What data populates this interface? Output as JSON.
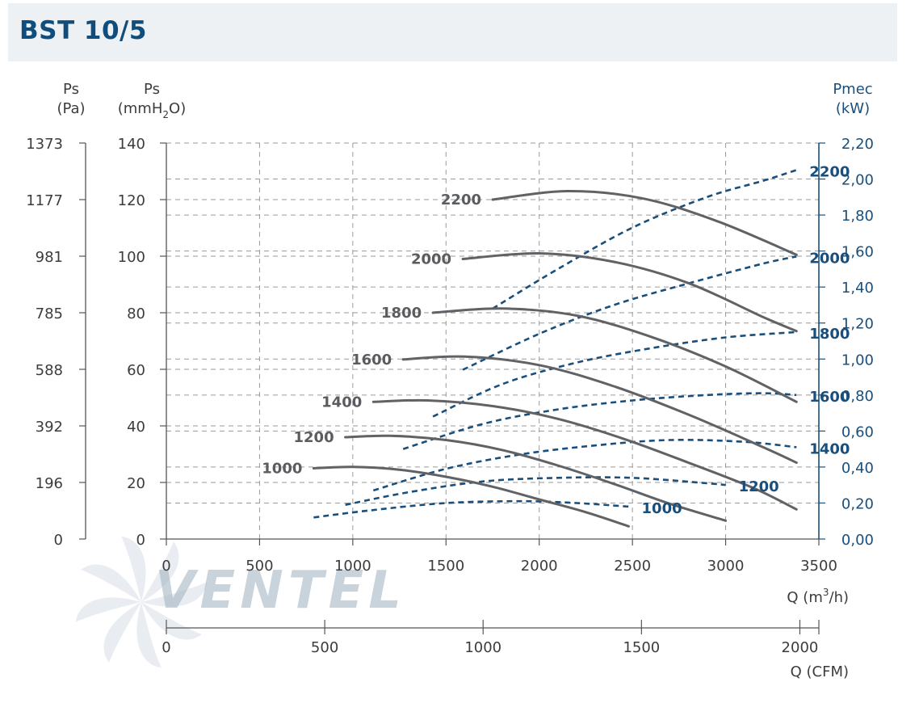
{
  "title": "BST 10/5",
  "watermark": "VENTEL",
  "colors": {
    "ps_curve": "#606266",
    "pmec_curve": "#1a4f7c",
    "title": "#0f4d7c",
    "grid": "#9a9a9a"
  },
  "chart_data": {
    "type": "line",
    "axes": {
      "left_pa": {
        "label": "Ps",
        "unit": "(Pa)",
        "ticks": [
          "1373",
          "1177",
          "981",
          "785",
          "588",
          "392",
          "196",
          "0"
        ]
      },
      "left_mmh2o": {
        "label": "Ps",
        "unit_prefix": "(mmH",
        "unit_sub": "2",
        "unit_suffix": "O)",
        "ticks": [
          "140",
          "120",
          "100",
          "80",
          "60",
          "40",
          "20",
          "0"
        ],
        "ylim": [
          0,
          140
        ]
      },
      "right_kw": {
        "label": "Pmec",
        "unit": "(kW)",
        "ticks": [
          "2,20",
          "2,00",
          "1,80",
          "1,60",
          "1,40",
          "1,20",
          "1,00",
          "0,80",
          "0,60",
          "0,40",
          "0,20",
          "0,00"
        ],
        "ylim": [
          0,
          2.2
        ]
      },
      "x_m3h": {
        "label_prefix": "Q (m",
        "label_sup": "3",
        "label_suffix": "/h)",
        "ticks": [
          "0",
          "500",
          "1000",
          "1500",
          "2000",
          "2500",
          "3000",
          "3500"
        ],
        "xlim": [
          0,
          3500
        ]
      },
      "x_cfm": {
        "label": "Q (CFM)",
        "ticks": [
          "0",
          "500",
          "1000",
          "1500",
          "2000"
        ],
        "xlim": [
          0,
          2060
        ]
      }
    },
    "grid": true,
    "ps_series": [
      {
        "name": "1000",
        "x": [
          790,
          1000,
          1250,
          1500,
          1750,
          2000,
          2250,
          2480
        ],
        "y": [
          25,
          25.5,
          24.5,
          22,
          18.5,
          14,
          9.5,
          4.5
        ]
      },
      {
        "name": "1200",
        "x": [
          960,
          1200,
          1500,
          1800,
          2100,
          2400,
          2700,
          3000
        ],
        "y": [
          36,
          36.5,
          35,
          31.5,
          26,
          19.5,
          12.5,
          6.5
        ]
      },
      {
        "name": "1400",
        "x": [
          1110,
          1400,
          1750,
          2100,
          2450,
          2800,
          3150,
          3380
        ],
        "y": [
          48.5,
          49,
          47,
          42.5,
          35.5,
          27,
          18,
          10.5
        ]
      },
      {
        "name": "1600",
        "x": [
          1270,
          1600,
          2000,
          2400,
          2800,
          3200,
          3380
        ],
        "y": [
          63.5,
          64.5,
          61.5,
          54,
          44,
          32.5,
          27
        ]
      },
      {
        "name": "1800",
        "x": [
          1430,
          1800,
          2200,
          2600,
          3000,
          3380
        ],
        "y": [
          80,
          81.5,
          79,
          71.5,
          61,
          48.5
        ]
      },
      {
        "name": "2000",
        "x": [
          1590,
          2000,
          2400,
          2800,
          3200,
          3380
        ],
        "y": [
          99,
          101,
          98,
          90.5,
          78.5,
          73.5
        ]
      },
      {
        "name": "2200",
        "x": [
          1750,
          2150,
          2550,
          2950,
          3380
        ],
        "y": [
          120,
          123,
          120.5,
          112.5,
          100.5
        ]
      }
    ],
    "pmec_series": [
      {
        "name": "1000",
        "x": [
          790,
          1100,
          1500,
          1900,
          2200,
          2480
        ],
        "y": [
          0.12,
          0.16,
          0.2,
          0.21,
          0.2,
          0.18
        ]
      },
      {
        "name": "1200",
        "x": [
          960,
          1300,
          1700,
          2100,
          2500,
          2900,
          3000
        ],
        "y": [
          0.19,
          0.26,
          0.32,
          0.34,
          0.34,
          0.31,
          0.3
        ]
      },
      {
        "name": "1400",
        "x": [
          1110,
          1500,
          1900,
          2300,
          2700,
          3100,
          3380
        ],
        "y": [
          0.27,
          0.39,
          0.47,
          0.52,
          0.55,
          0.54,
          0.51
        ]
      },
      {
        "name": "1600",
        "x": [
          1270,
          1700,
          2100,
          2500,
          2900,
          3200,
          3380
        ],
        "y": [
          0.5,
          0.64,
          0.72,
          0.77,
          0.8,
          0.81,
          0.8
        ]
      },
      {
        "name": "1800",
        "x": [
          1430,
          1800,
          2200,
          2600,
          3000,
          3380
        ],
        "y": [
          0.68,
          0.86,
          0.98,
          1.06,
          1.12,
          1.15
        ]
      },
      {
        "name": "2000",
        "x": [
          1590,
          2000,
          2400,
          2800,
          3200,
          3380
        ],
        "y": [
          0.94,
          1.14,
          1.3,
          1.42,
          1.53,
          1.57
        ]
      },
      {
        "name": "2200",
        "x": [
          1750,
          2100,
          2500,
          2900,
          3200,
          3380
        ],
        "y": [
          1.28,
          1.5,
          1.73,
          1.9,
          1.99,
          2.05
        ]
      }
    ]
  }
}
